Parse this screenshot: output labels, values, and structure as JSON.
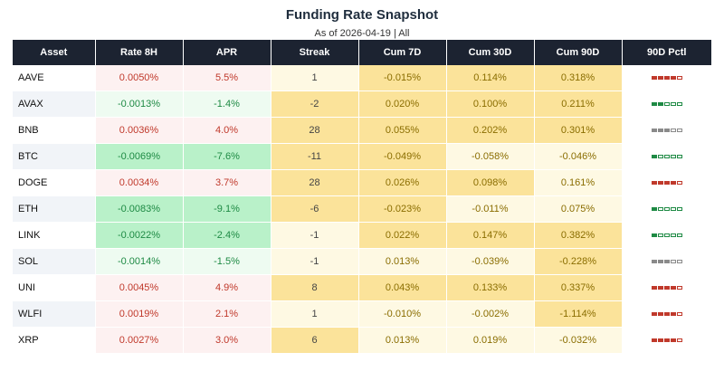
{
  "chart_data": {
    "type": "table",
    "title": "Funding Rate Snapshot",
    "subtitle": "As of 2026-04-19 | All",
    "columns": [
      "Asset",
      "Rate 8H",
      "APR",
      "Streak",
      "Cum 7D",
      "Cum 30D",
      "Cum 90D",
      "90D Pctl"
    ],
    "rows": [
      {
        "asset": "AAVE",
        "rate8h": "0.0050%",
        "apr": "5.5%",
        "streak": "1",
        "cum7d": "-0.015%",
        "cum30d": "0.114%",
        "cum90d": "0.318%",
        "pctl": 4,
        "pctl_color": "#c0392b"
      },
      {
        "asset": "AVAX",
        "rate8h": "-0.0013%",
        "apr": "-1.4%",
        "streak": "-2",
        "cum7d": "0.020%",
        "cum30d": "0.100%",
        "cum90d": "0.211%",
        "pctl": 2,
        "pctl_color": "#1e8a44"
      },
      {
        "asset": "BNB",
        "rate8h": "0.0036%",
        "apr": "4.0%",
        "streak": "28",
        "cum7d": "0.055%",
        "cum30d": "0.202%",
        "cum90d": "0.301%",
        "pctl": 3,
        "pctl_color": "#8a8a8a"
      },
      {
        "asset": "BTC",
        "rate8h": "-0.0069%",
        "apr": "-7.6%",
        "streak": "-11",
        "cum7d": "-0.049%",
        "cum30d": "-0.058%",
        "cum90d": "-0.046%",
        "pctl": 1,
        "pctl_color": "#1e8a44"
      },
      {
        "asset": "DOGE",
        "rate8h": "0.0034%",
        "apr": "3.7%",
        "streak": "28",
        "cum7d": "0.026%",
        "cum30d": "0.098%",
        "cum90d": "0.161%",
        "pctl": 4,
        "pctl_color": "#c0392b"
      },
      {
        "asset": "ETH",
        "rate8h": "-0.0083%",
        "apr": "-9.1%",
        "streak": "-6",
        "cum7d": "-0.023%",
        "cum30d": "-0.011%",
        "cum90d": "0.075%",
        "pctl": 1,
        "pctl_color": "#1e8a44"
      },
      {
        "asset": "LINK",
        "rate8h": "-0.0022%",
        "apr": "-2.4%",
        "streak": "-1",
        "cum7d": "0.022%",
        "cum30d": "0.147%",
        "cum90d": "0.382%",
        "pctl": 1,
        "pctl_color": "#1e8a44"
      },
      {
        "asset": "SOL",
        "rate8h": "-0.0014%",
        "apr": "-1.5%",
        "streak": "-1",
        "cum7d": "0.013%",
        "cum30d": "-0.039%",
        "cum90d": "-0.228%",
        "pctl": 3,
        "pctl_color": "#8a8a8a"
      },
      {
        "asset": "UNI",
        "rate8h": "0.0045%",
        "apr": "4.9%",
        "streak": "8",
        "cum7d": "0.043%",
        "cum30d": "0.133%",
        "cum90d": "0.337%",
        "pctl": 4,
        "pctl_color": "#c0392b"
      },
      {
        "asset": "WLFI",
        "rate8h": "0.0019%",
        "apr": "2.1%",
        "streak": "1",
        "cum7d": "-0.010%",
        "cum30d": "-0.002%",
        "cum90d": "-1.114%",
        "pctl": 4,
        "pctl_color": "#c0392b"
      },
      {
        "asset": "XRP",
        "rate8h": "0.0027%",
        "apr": "3.0%",
        "streak": "6",
        "cum7d": "0.013%",
        "cum30d": "0.019%",
        "cum90d": "-0.032%",
        "pctl": 4,
        "pctl_color": "#c0392b"
      }
    ],
    "colors": {
      "header_bg": "#1c2331",
      "positive_text": "#c0392b",
      "negative_text": "#1e8a44",
      "pos_bg": "#fdf1f1",
      "neg_bg_light": "#eefbf1",
      "neg_bg_strong": "#b9f1c9",
      "cum_bg_strong": "#fbe39a",
      "cum_bg_light": "#fef9e3"
    }
  }
}
